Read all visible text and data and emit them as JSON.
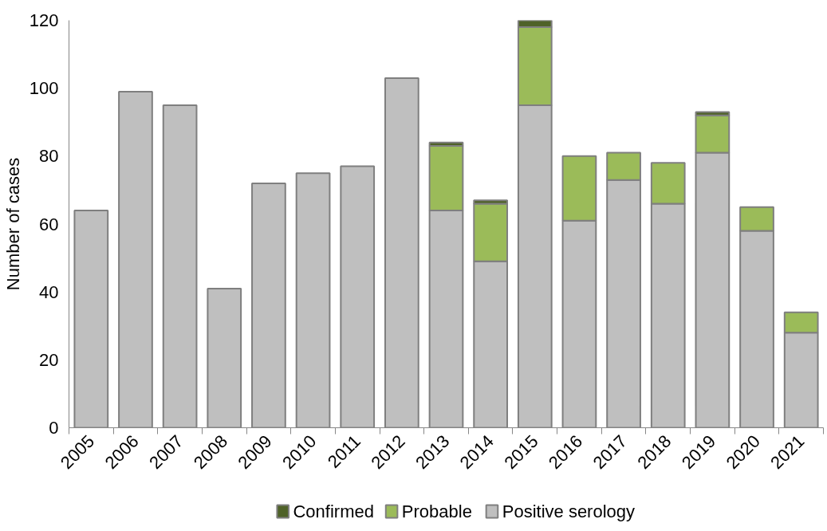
{
  "chart_data": {
    "type": "bar",
    "stacked": true,
    "ylabel": "Number of cases",
    "categories": [
      "2005",
      "2006",
      "2007",
      "2008",
      "2009",
      "2010",
      "2011",
      "2012",
      "2013",
      "2014",
      "2015",
      "2016",
      "2017",
      "2018",
      "2019",
      "2020",
      "2021"
    ],
    "series": [
      {
        "name": "Positive serology",
        "color": "#bfbfbf",
        "values": [
          64,
          99,
          95,
          41,
          72,
          75,
          77,
          103,
          64,
          49,
          95,
          61,
          73,
          66,
          81,
          58,
          28
        ]
      },
      {
        "name": "Probable",
        "color": "#9bbb59",
        "values": [
          null,
          null,
          null,
          null,
          null,
          null,
          null,
          null,
          19,
          17,
          23,
          19,
          8,
          12,
          11,
          7,
          6
        ]
      },
      {
        "name": "Confirmed",
        "color": "#4f6228",
        "values": [
          null,
          null,
          null,
          null,
          null,
          null,
          null,
          null,
          1,
          1,
          2,
          null,
          null,
          null,
          1,
          null,
          null
        ]
      }
    ],
    "ylim": [
      0,
      120
    ],
    "yticks": [
      0,
      20,
      40,
      60,
      80,
      100,
      120
    ],
    "grid": false,
    "legend": "bottom"
  }
}
